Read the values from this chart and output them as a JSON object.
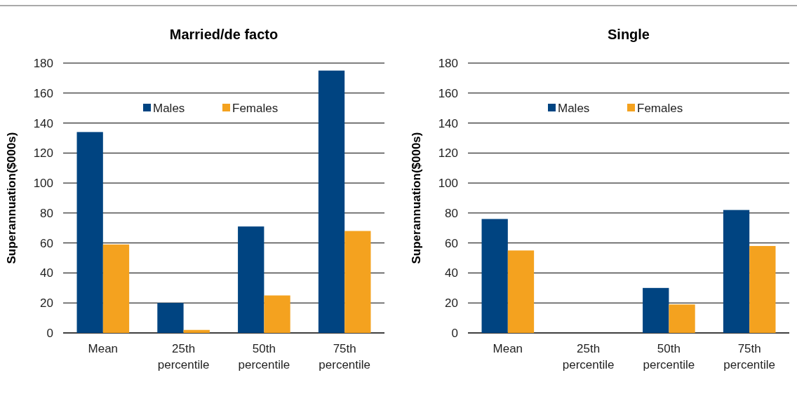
{
  "chart_data": [
    {
      "type": "bar",
      "title": "Married/de facto",
      "ylabel": "Superannuation($000s)",
      "categories": [
        "Mean",
        "25th percentile",
        "50th percentile",
        "75th percentile"
      ],
      "series": [
        {
          "name": "Males",
          "color": "#004481",
          "values": [
            134,
            20,
            71,
            175
          ]
        },
        {
          "name": "Females",
          "color": "#f4a21f",
          "values": [
            59,
            2,
            25,
            68
          ]
        }
      ],
      "ylim": [
        0,
        180
      ],
      "yticks": [
        0,
        20,
        40,
        60,
        80,
        100,
        120,
        140,
        160,
        180
      ],
      "grid": "y",
      "legend": "top"
    },
    {
      "type": "bar",
      "title": "Single",
      "ylabel": "Superannuation($000s)",
      "categories": [
        "Mean",
        "25th percentile",
        "50th percentile",
        "75th percentile"
      ],
      "series": [
        {
          "name": "Males",
          "color": "#004481",
          "values": [
            76,
            0,
            30,
            82
          ]
        },
        {
          "name": "Females",
          "color": "#f4a21f",
          "values": [
            55,
            0,
            19,
            58
          ]
        }
      ],
      "ylim": [
        0,
        180
      ],
      "yticks": [
        0,
        20,
        40,
        60,
        80,
        100,
        120,
        140,
        160,
        180
      ],
      "grid": "y",
      "legend": "top"
    }
  ]
}
